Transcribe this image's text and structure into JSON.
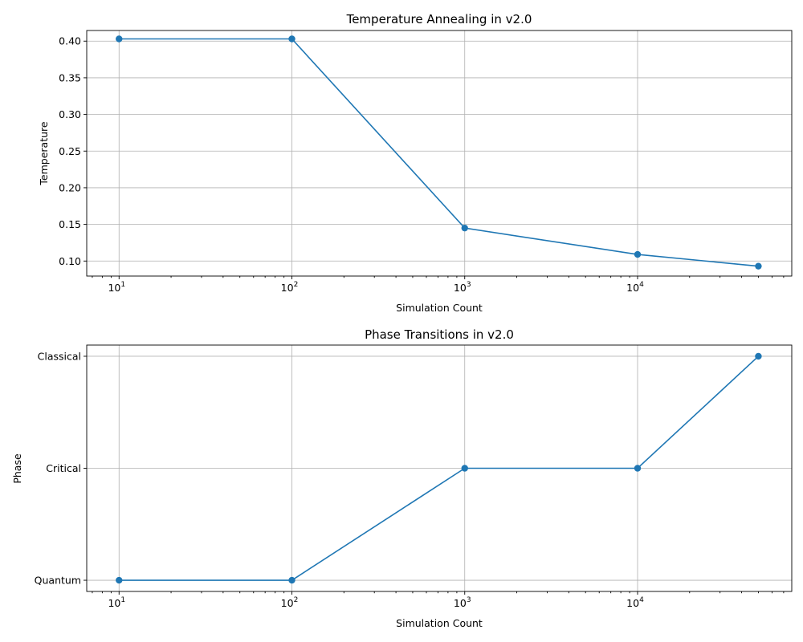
{
  "colors": {
    "series": "#1f77b4",
    "grid": "#b0b0b0"
  },
  "chart_data": [
    {
      "type": "line",
      "title": "Temperature Annealing in v2.0",
      "xlabel": "Simulation Count",
      "ylabel": "Temperature",
      "xscale": "log",
      "grid": true,
      "xlim": [
        6.5,
        78000
      ],
      "ylim": [
        0.0795,
        0.4145
      ],
      "xtick_bases": [
        "10",
        "10",
        "10",
        "10"
      ],
      "xtick_exponents": [
        "1",
        "2",
        "3",
        "4"
      ],
      "xtick_values": [
        10,
        100,
        1000,
        10000
      ],
      "yticks": [
        "0.10",
        "0.15",
        "0.20",
        "0.25",
        "0.30",
        "0.35",
        "0.40"
      ],
      "ytick_values": [
        0.1,
        0.15,
        0.2,
        0.25,
        0.3,
        0.35,
        0.4
      ],
      "series": [
        {
          "x": [
            10,
            100,
            1000,
            10000,
            50000
          ],
          "y": [
            0.403,
            0.403,
            0.145,
            0.109,
            0.093
          ]
        }
      ]
    },
    {
      "type": "line",
      "title": "Phase Transitions in v2.0",
      "xlabel": "Simulation Count",
      "ylabel": "Phase",
      "xscale": "log",
      "grid": true,
      "xlim": [
        6.5,
        78000
      ],
      "ylim": [
        -0.1,
        2.1
      ],
      "xtick_bases": [
        "10",
        "10",
        "10",
        "10"
      ],
      "xtick_exponents": [
        "1",
        "2",
        "3",
        "4"
      ],
      "xtick_values": [
        10,
        100,
        1000,
        10000
      ],
      "yticks": [
        "Quantum",
        "Critical",
        "Classical"
      ],
      "ytick_values": [
        0,
        1,
        2
      ],
      "series": [
        {
          "x": [
            10,
            100,
            1000,
            10000,
            50000
          ],
          "y": [
            "Quantum",
            "Quantum",
            "Critical",
            "Critical",
            "Classical"
          ]
        }
      ]
    }
  ]
}
